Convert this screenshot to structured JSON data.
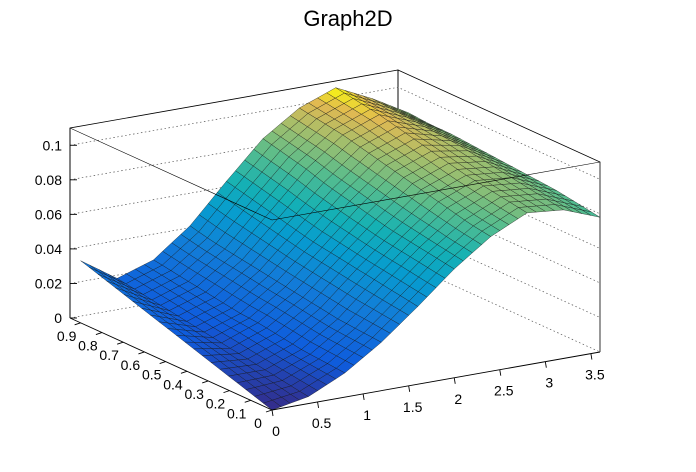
{
  "chart_data": {
    "type": "surface",
    "title": "Graph2D",
    "xlabel": "",
    "ylabel": "",
    "zlabel": "",
    "x_range": [
      0,
      3.6
    ],
    "y_range": [
      0,
      0.95
    ],
    "z_range": [
      0,
      0.11
    ],
    "x_ticks": [
      "0",
      "0.5",
      "1",
      "1.5",
      "2",
      "2.5",
      "3",
      "3.5"
    ],
    "y_ticks": [
      "0",
      "0.1",
      "0.2",
      "0.3",
      "0.4",
      "0.5",
      "0.6",
      "0.7",
      "0.8",
      "0.9"
    ],
    "z_ticks": [
      "0",
      "0.02",
      "0.04",
      "0.06",
      "0.08",
      "0.1"
    ],
    "grid": true,
    "colormap": "viridis-like (blue to yellow)",
    "surface_description_note": "",
    "samples": {
      "x": [
        0,
        0.4,
        0.8,
        1.2,
        1.6,
        2.0,
        2.4,
        2.8,
        3.2,
        3.6
      ],
      "y": [
        0,
        0.1,
        0.2,
        0.3,
        0.4,
        0.5,
        0.6,
        0.7,
        0.8,
        0.9
      ],
      "z": [
        [
          0.0,
          0.004,
          0.014,
          0.028,
          0.045,
          0.063,
          0.078,
          0.088,
          0.086,
          0.078
        ],
        [
          0.004,
          0.006,
          0.015,
          0.029,
          0.047,
          0.065,
          0.08,
          0.09,
          0.088,
          0.08
        ],
        [
          0.008,
          0.008,
          0.016,
          0.03,
          0.049,
          0.067,
          0.083,
          0.092,
          0.09,
          0.082
        ],
        [
          0.012,
          0.01,
          0.018,
          0.032,
          0.051,
          0.069,
          0.086,
          0.094,
          0.092,
          0.083
        ],
        [
          0.016,
          0.012,
          0.02,
          0.034,
          0.053,
          0.072,
          0.089,
          0.097,
          0.094,
          0.084
        ],
        [
          0.02,
          0.014,
          0.021,
          0.036,
          0.055,
          0.075,
          0.092,
          0.1,
          0.096,
          0.085
        ],
        [
          0.024,
          0.016,
          0.023,
          0.038,
          0.058,
          0.078,
          0.095,
          0.103,
          0.097,
          0.086
        ],
        [
          0.028,
          0.018,
          0.025,
          0.04,
          0.061,
          0.082,
          0.098,
          0.106,
          0.098,
          0.087
        ],
        [
          0.032,
          0.02,
          0.027,
          0.042,
          0.064,
          0.085,
          0.1,
          0.108,
          0.099,
          0.087
        ],
        [
          0.036,
          0.022,
          0.029,
          0.045,
          0.067,
          0.088,
          0.102,
          0.11,
          0.1,
          0.088
        ]
      ]
    }
  }
}
